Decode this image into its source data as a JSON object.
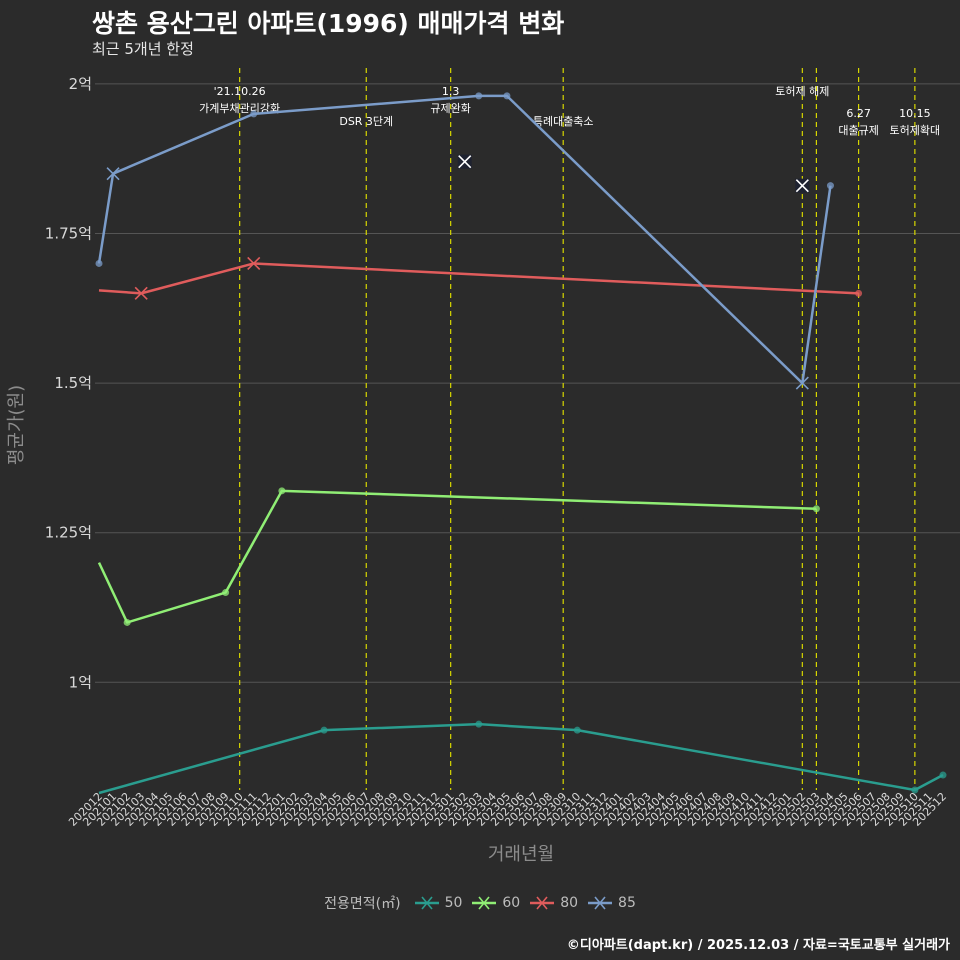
{
  "header": {
    "title": "쌍촌 용산그린 아파트(1996) 매매가격 변화",
    "subtitle": "최근 5개년 한정"
  },
  "footer": {
    "credit": "©디아파트(dapt.kr) / 2025.12.03 / 자료=국토교통부 실거래가"
  },
  "legend": {
    "title": "전용면적(㎡)"
  },
  "colors": {
    "background": "#2b2b2b",
    "grid": "#555555",
    "event_line": "#d7d700",
    "s50": "#2a9d8f",
    "s60": "#90ee75",
    "s80": "#e05c5c",
    "s85": "#7b9cc9"
  },
  "chart_data": {
    "type": "line",
    "title": "쌍촌 용산그린 아파트(1996) 매매가격 변화",
    "xlabel": "거래년월",
    "ylabel": "평균가(원)",
    "ylim": [
      0.82,
      2.04
    ],
    "yticks": [
      {
        "value": 1.0,
        "label": "1억"
      },
      {
        "value": 1.25,
        "label": "1.25억"
      },
      {
        "value": 1.5,
        "label": "1.5억"
      },
      {
        "value": 1.75,
        "label": "1.75억"
      },
      {
        "value": 2.0,
        "label": "2억"
      }
    ],
    "categories": [
      "202012",
      "202101",
      "202102",
      "202103",
      "202104",
      "202105",
      "202106",
      "202107",
      "202108",
      "202109",
      "202110",
      "202111",
      "202112",
      "202201",
      "202202",
      "202203",
      "202204",
      "202205",
      "202206",
      "202207",
      "202208",
      "202209",
      "202210",
      "202211",
      "202212",
      "202301",
      "202302",
      "202303",
      "202304",
      "202305",
      "202306",
      "202307",
      "202308",
      "202309",
      "202310",
      "202311",
      "202312",
      "202401",
      "202402",
      "202403",
      "202404",
      "202405",
      "202406",
      "202407",
      "202408",
      "202409",
      "202410",
      "202411",
      "202412",
      "202501",
      "202502",
      "202503",
      "202504",
      "202505",
      "202506",
      "202507",
      "202508",
      "202509",
      "202510",
      "202511",
      "202512"
    ],
    "series": [
      {
        "name": "50",
        "color_key": "s50",
        "points": [
          [
            0,
            0.815,
            "none"
          ],
          [
            16,
            0.92,
            "dot"
          ],
          [
            27,
            0.93,
            "dot"
          ],
          [
            34,
            0.92,
            "dot"
          ],
          [
            58,
            0.82,
            "dot"
          ],
          [
            60,
            0.845,
            "dot"
          ]
        ]
      },
      {
        "name": "60",
        "color_key": "s60",
        "points": [
          [
            0,
            1.2,
            "none"
          ],
          [
            2,
            1.1,
            "dot"
          ],
          [
            9,
            1.15,
            "dot"
          ],
          [
            13,
            1.32,
            "dot"
          ],
          [
            51,
            1.29,
            "dot"
          ]
        ]
      },
      {
        "name": "80",
        "color_key": "s80",
        "points": [
          [
            0,
            1.655,
            "none"
          ],
          [
            3,
            1.65,
            "x"
          ],
          [
            11,
            1.7,
            "x"
          ],
          [
            54,
            1.65,
            "dot"
          ]
        ]
      },
      {
        "name": "85",
        "color_key": "s85",
        "points": [
          [
            0,
            1.7,
            "dot"
          ],
          [
            1,
            1.85,
            "x"
          ],
          [
            11,
            1.95,
            "dot"
          ],
          [
            27,
            1.98,
            "dot"
          ],
          [
            29,
            1.98,
            "dot"
          ],
          [
            50,
            1.5,
            "x"
          ],
          [
            52,
            1.83,
            "dot"
          ]
        ]
      }
    ],
    "extra_markers": [
      {
        "x": 26,
        "y": 1.87,
        "symbol": "x"
      },
      {
        "x": 50,
        "y": 1.83,
        "symbol": "x"
      }
    ],
    "events": [
      {
        "x": 10,
        "lines": [
          "'21.10.26",
          "가계부채관리강화"
        ],
        "row": 0
      },
      {
        "x": 19,
        "lines": [
          "DSR 3단계"
        ],
        "row": 1
      },
      {
        "x": 25,
        "lines": [
          "1.3",
          "규제완화"
        ],
        "row": 0
      },
      {
        "x": 33,
        "lines": [
          "특례대출축소"
        ],
        "row": 1
      },
      {
        "x": 50,
        "lines": [
          "토허제 해제"
        ],
        "row": 0
      },
      {
        "x": 51,
        "lines": [],
        "row": 0
      },
      {
        "x": 54,
        "lines": [
          "6.27",
          "대출규제"
        ],
        "row": 2
      },
      {
        "x": 58,
        "lines": [
          "10.15",
          "토허제확대"
        ],
        "row": 2
      }
    ]
  }
}
